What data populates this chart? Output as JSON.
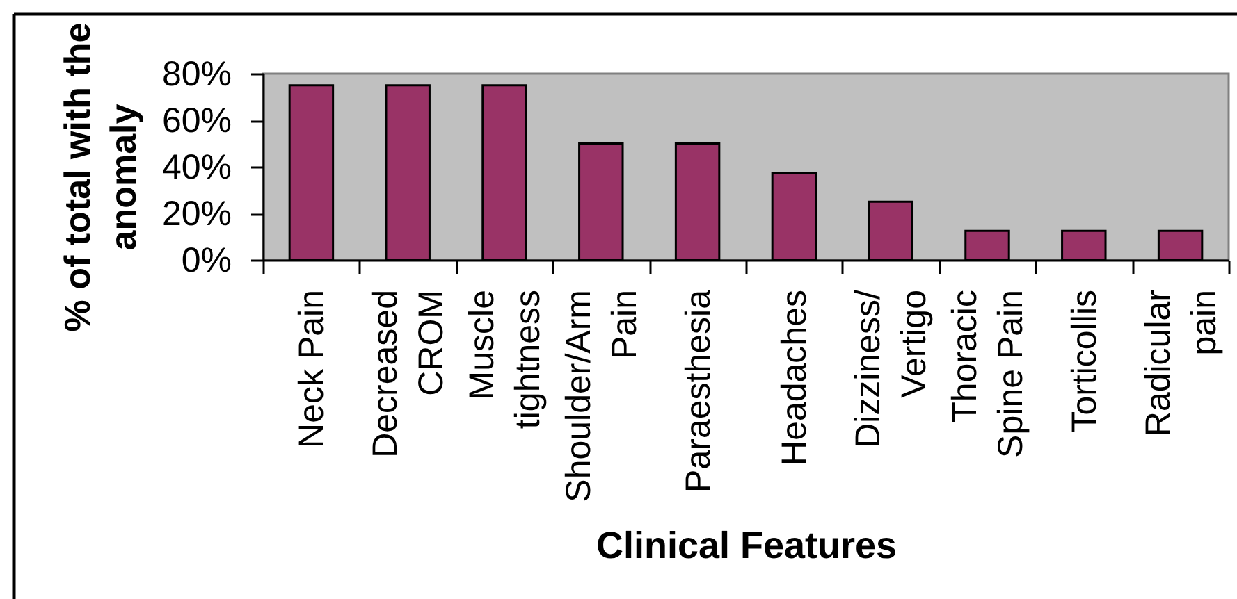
{
  "chart_data": {
    "type": "bar",
    "xlabel": "Clinical Features",
    "ylabel": "% of total with the anomaly",
    "categories": [
      "Neck Pain",
      "Decreased CROM",
      "Muscle tightness",
      "Shoulder/Arm Pain",
      "Paraesthesia",
      "Headaches",
      "Dizziness/ Vertigo",
      "Thoracic Spine Pain",
      "Torticollis",
      "Radicular pain"
    ],
    "values": [
      75,
      75,
      75,
      50,
      50,
      37.5,
      25,
      12.5,
      12.5,
      12.5
    ],
    "color": "#993366",
    "ylim": [
      0,
      80
    ],
    "yticks": [
      {
        "value": 0,
        "label": "0%"
      },
      {
        "value": 20,
        "label": "20%"
      },
      {
        "value": 40,
        "label": "40%"
      },
      {
        "value": 60,
        "label": "60%"
      },
      {
        "value": 80,
        "label": "80%"
      }
    ]
  }
}
